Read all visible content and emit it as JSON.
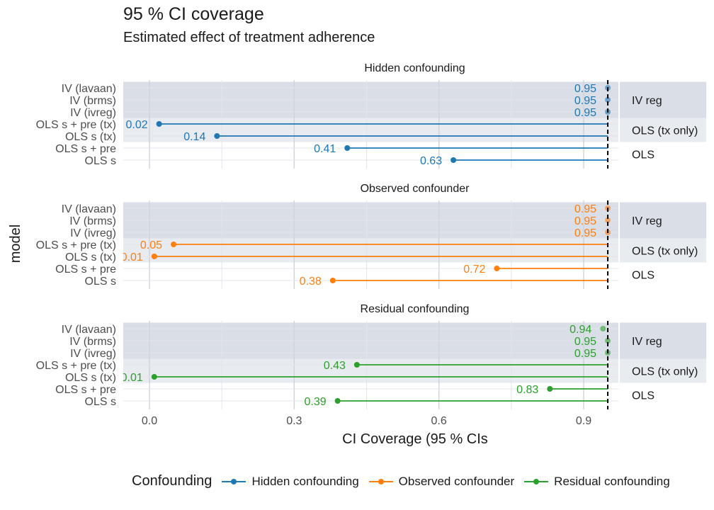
{
  "title": "95 % CI coverage",
  "subtitle": "Estimated effect of treatment adherence",
  "chart_data": {
    "type": "lollipop",
    "xlabel": "CI Coverage (95 % CIs",
    "ylabel": "model",
    "xlim": [
      -0.05,
      1.12
    ],
    "xticks": [
      "0.0",
      "0.3",
      "0.6",
      "0.9"
    ],
    "reference_line": 0.95,
    "models": [
      "IV (lavaan)",
      "IV (brms)",
      "IV (ivreg)",
      "OLS s + pre (tx)",
      "OLS s (tx)",
      "OLS s + pre",
      "OLS s"
    ],
    "groups": [
      {
        "label": "IV reg",
        "models": [
          "IV (lavaan)",
          "IV (brms)",
          "IV (ivreg)"
        ],
        "shade": "#dadee6"
      },
      {
        "label": "OLS (tx only)",
        "models": [
          "OLS s + pre (tx)",
          "OLS s (tx)"
        ],
        "shade": "#e8ebef"
      },
      {
        "label": "OLS",
        "models": [
          "OLS s + pre",
          "OLS s"
        ],
        "shade": "#ffffff"
      }
    ],
    "panels": [
      {
        "name": "Hidden confounding",
        "color": "#1f77b4",
        "values": [
          0.95,
          0.95,
          0.95,
          0.02,
          0.14,
          0.41,
          0.63
        ],
        "labels": [
          "0.95",
          "0.95",
          "0.95",
          "0.02",
          "0.14",
          "0.41",
          "0.63"
        ]
      },
      {
        "name": "Observed confounder",
        "color": "#ff7f0e",
        "values": [
          0.95,
          0.95,
          0.95,
          0.05,
          0.01,
          0.72,
          0.38
        ],
        "labels": [
          "0.95",
          "0.95",
          "0.95",
          "0.05",
          "0.01",
          "0.72",
          "0.38"
        ]
      },
      {
        "name": "Residual confounding",
        "color": "#2ca02c",
        "values": [
          0.94,
          0.95,
          0.95,
          0.43,
          0.01,
          0.83,
          0.39
        ],
        "labels": [
          "0.94",
          "0.95",
          "0.95",
          "0.43",
          "0.01",
          "0.83",
          "0.39"
        ]
      }
    ],
    "legend": {
      "title": "Confounding",
      "position": "bottom",
      "items": [
        {
          "label": "Hidden confounding",
          "color": "#1f77b4"
        },
        {
          "label": "Observed confounder",
          "color": "#ff7f0e"
        },
        {
          "label": "Residual confounding",
          "color": "#2ca02c"
        }
      ]
    }
  }
}
